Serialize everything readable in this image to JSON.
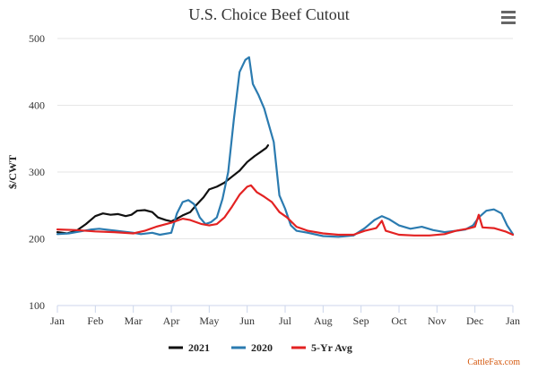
{
  "chart_data": {
    "type": "line",
    "title": "U.S. Choice Beef Cutout",
    "ylabel": "$/CWT",
    "xlabel": "",
    "ylim": [
      100,
      500
    ],
    "y_ticks": [
      100,
      200,
      300,
      400,
      500
    ],
    "x_ticks": [
      "Jan",
      "Feb",
      "Mar",
      "Apr",
      "May",
      "Jun",
      "Jul",
      "Aug",
      "Sep",
      "Oct",
      "Nov",
      "Dec",
      "Jan"
    ],
    "x_unit": "month index (0 = Jan, 12 = next Jan)",
    "grid": true,
    "legend_position": "bottom",
    "credit": "CattleFax.com",
    "menu_icon": "hamburger-menu-icon",
    "series": [
      {
        "name": "2021",
        "color": "#111111",
        "points": [
          [
            0.0,
            210
          ],
          [
            0.25,
            208
          ],
          [
            0.5,
            212
          ],
          [
            0.75,
            222
          ],
          [
            1.0,
            234
          ],
          [
            1.2,
            238
          ],
          [
            1.4,
            236
          ],
          [
            1.6,
            237
          ],
          [
            1.8,
            234
          ],
          [
            1.95,
            236
          ],
          [
            2.1,
            242
          ],
          [
            2.3,
            243
          ],
          [
            2.5,
            240
          ],
          [
            2.65,
            232
          ],
          [
            2.85,
            228
          ],
          [
            3.0,
            226
          ],
          [
            3.15,
            230
          ],
          [
            3.3,
            235
          ],
          [
            3.5,
            240
          ],
          [
            3.65,
            250
          ],
          [
            3.85,
            262
          ],
          [
            4.0,
            274
          ],
          [
            4.2,
            278
          ],
          [
            4.4,
            284
          ],
          [
            4.6,
            293
          ],
          [
            4.8,
            302
          ],
          [
            5.0,
            315
          ],
          [
            5.2,
            324
          ],
          [
            5.35,
            330
          ],
          [
            5.5,
            336
          ],
          [
            5.55,
            340
          ]
        ]
      },
      {
        "name": "2020",
        "color": "#2b7bb0",
        "points": [
          [
            0.0,
            207
          ],
          [
            0.3,
            208
          ],
          [
            0.6,
            211
          ],
          [
            0.9,
            214
          ],
          [
            1.1,
            215
          ],
          [
            1.4,
            213
          ],
          [
            1.7,
            211
          ],
          [
            2.0,
            209
          ],
          [
            2.2,
            207
          ],
          [
            2.5,
            209
          ],
          [
            2.7,
            206
          ],
          [
            3.0,
            209
          ],
          [
            3.15,
            238
          ],
          [
            3.3,
            255
          ],
          [
            3.45,
            258
          ],
          [
            3.6,
            252
          ],
          [
            3.75,
            232
          ],
          [
            3.9,
            222
          ],
          [
            4.05,
            225
          ],
          [
            4.2,
            232
          ],
          [
            4.35,
            260
          ],
          [
            4.5,
            300
          ],
          [
            4.65,
            380
          ],
          [
            4.8,
            450
          ],
          [
            4.95,
            468
          ],
          [
            5.05,
            472
          ],
          [
            5.15,
            432
          ],
          [
            5.3,
            415
          ],
          [
            5.45,
            395
          ],
          [
            5.55,
            375
          ],
          [
            5.7,
            345
          ],
          [
            5.85,
            265
          ],
          [
            6.0,
            245
          ],
          [
            6.15,
            220
          ],
          [
            6.3,
            212
          ],
          [
            6.6,
            209
          ],
          [
            7.0,
            204
          ],
          [
            7.4,
            203
          ],
          [
            7.8,
            205
          ],
          [
            8.1,
            216
          ],
          [
            8.35,
            228
          ],
          [
            8.55,
            234
          ],
          [
            8.75,
            229
          ],
          [
            9.0,
            220
          ],
          [
            9.3,
            215
          ],
          [
            9.6,
            218
          ],
          [
            9.9,
            213
          ],
          [
            10.2,
            210
          ],
          [
            10.5,
            212
          ],
          [
            10.75,
            214
          ],
          [
            10.95,
            220
          ],
          [
            11.1,
            232
          ],
          [
            11.3,
            242
          ],
          [
            11.5,
            244
          ],
          [
            11.7,
            238
          ],
          [
            11.85,
            220
          ],
          [
            12.0,
            207
          ]
        ]
      },
      {
        "name": "5-Yr Avg",
        "color": "#e32222",
        "points": [
          [
            0.0,
            214
          ],
          [
            0.5,
            213
          ],
          [
            1.0,
            211
          ],
          [
            1.5,
            210
          ],
          [
            2.0,
            208
          ],
          [
            2.3,
            212
          ],
          [
            2.6,
            218
          ],
          [
            3.0,
            224
          ],
          [
            3.3,
            230
          ],
          [
            3.5,
            228
          ],
          [
            3.8,
            222
          ],
          [
            4.0,
            220
          ],
          [
            4.2,
            222
          ],
          [
            4.4,
            232
          ],
          [
            4.6,
            248
          ],
          [
            4.8,
            266
          ],
          [
            5.0,
            278
          ],
          [
            5.1,
            280
          ],
          [
            5.25,
            270
          ],
          [
            5.45,
            263
          ],
          [
            5.65,
            255
          ],
          [
            5.85,
            240
          ],
          [
            6.05,
            232
          ],
          [
            6.3,
            218
          ],
          [
            6.6,
            212
          ],
          [
            7.0,
            208
          ],
          [
            7.4,
            206
          ],
          [
            7.8,
            206
          ],
          [
            8.1,
            212
          ],
          [
            8.4,
            216
          ],
          [
            8.55,
            227
          ],
          [
            8.65,
            212
          ],
          [
            9.0,
            206
          ],
          [
            9.4,
            205
          ],
          [
            9.8,
            205
          ],
          [
            10.2,
            207
          ],
          [
            10.5,
            212
          ],
          [
            10.8,
            215
          ],
          [
            11.0,
            218
          ],
          [
            11.1,
            236
          ],
          [
            11.2,
            217
          ],
          [
            11.5,
            216
          ],
          [
            11.8,
            211
          ],
          [
            12.0,
            206
          ]
        ]
      }
    ]
  }
}
